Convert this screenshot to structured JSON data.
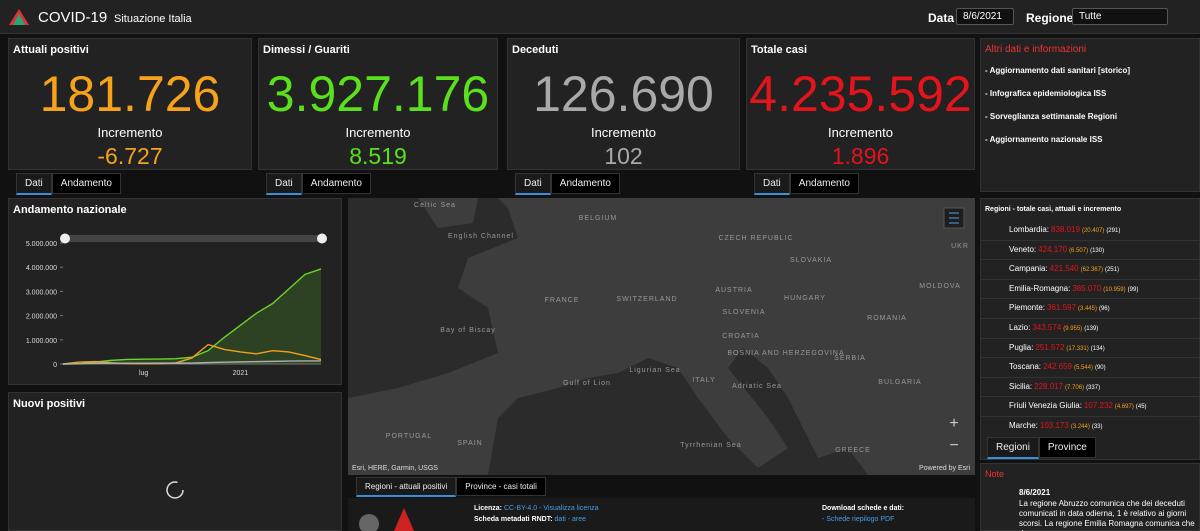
{
  "header": {
    "title": "COVID-19",
    "subtitle": "Situazione Italia",
    "date_label": "Data",
    "date_value": "8/6/2021",
    "region_label": "Regione",
    "region_value": "Tutte"
  },
  "cards": [
    {
      "title": "Attuali positivi",
      "value": "181.726",
      "increment_label": "Incremento",
      "increment": "-6.727",
      "color": "#f7a21b",
      "tabs": [
        "Dati",
        "Andamento"
      ]
    },
    {
      "title": "Dimessi / Guariti",
      "value": "3.927.176",
      "increment_label": "Incremento",
      "increment": "8.519",
      "color": "#5be01d",
      "tabs": [
        "Dati",
        "Andamento"
      ]
    },
    {
      "title": "Deceduti",
      "value": "126.690",
      "increment_label": "Incremento",
      "increment": "102",
      "color": "#a9a9a9",
      "tabs": [
        "Dati",
        "Andamento"
      ]
    },
    {
      "title": "Totale casi",
      "value": "4.235.592",
      "increment_label": "Incremento",
      "increment": "1.896",
      "color": "#e3141b",
      "tabs": [
        "Dati",
        "Andamento"
      ]
    }
  ],
  "links": {
    "title": "Altri dati e informazioni",
    "items": [
      "- Aggiornamento dati sanitari [storico]",
      "- Infografica epidemiologica ISS",
      "- Sorveglianza settimanale Regioni",
      "- Aggiornamento nazionale ISS"
    ]
  },
  "chart_data": {
    "type": "line",
    "title": "Andamento nazionale",
    "categories": [
      null,
      null,
      null,
      null,
      null,
      "lug",
      null,
      null,
      null,
      null,
      null,
      "2021",
      null,
      null,
      null,
      null,
      null
    ],
    "series": [
      {
        "color": "#6ad42b",
        "values": [
          0,
          10000,
          80000,
          150000,
          190000,
          200000,
          205000,
          220000,
          280000,
          550000,
          1100000,
          1600000,
          2100000,
          2500000,
          3100000,
          3700000,
          3927176
        ]
      },
      {
        "color": "#f0a21e",
        "values": [
          0,
          80000,
          100000,
          50000,
          20000,
          12000,
          15000,
          45000,
          250000,
          800000,
          600000,
          500000,
          420000,
          550000,
          500000,
          350000,
          181726
        ]
      },
      {
        "color": "#b0b0b0",
        "values": [
          0,
          12000,
          28000,
          33000,
          35000,
          35000,
          36000,
          36000,
          39000,
          60000,
          74000,
          88000,
          98000,
          108000,
          121000,
          125000,
          126690
        ]
      }
    ],
    "ylim": [
      0,
      5000000
    ],
    "yticks": [
      0,
      {
        "value": 1000000,
        "label": "1.000.000"
      },
      {
        "value": 2000000,
        "label": "2.000.000"
      },
      {
        "value": 3000000,
        "label": "3.000.000"
      },
      {
        "value": 4000000,
        "label": "4.000.000"
      },
      {
        "value": 5000000,
        "label": "5.000.000"
      }
    ],
    "grid": false
  },
  "new_positives": {
    "title": "Nuovi positivi"
  },
  "map": {
    "labels": [
      "Celtic Sea",
      "BELGIUM",
      "English Channel",
      "CZECH REPUBLIC",
      "UKR",
      "SLOVAKIA",
      "FRANCE",
      "SWITZERLAND",
      "AUSTRIA",
      "HUNGARY",
      "MOLDOVA",
      "SLOVENIA",
      "ROMANIA",
      "Bay of Biscay",
      "CROATIA",
      "BOSNIA AND HERZEGOVINA",
      "SERBIA",
      "Ligurian Sea",
      "ITALY",
      "Adriatic Sea",
      "BULGARIA",
      "Gulf of Lion",
      "PORTUGAL",
      "SPAIN",
      "Tyrrhenian Sea",
      "GREECE"
    ],
    "attribution": "Esri, HERE, Garmin, USGS",
    "powered": "Powered by Esri",
    "tabs": [
      "Regioni - attuali positivi",
      "Province - casi totali"
    ]
  },
  "footer": {
    "license_label": "Licenza:",
    "license": "CC-BY-4.0",
    "license_link": "- Visualizza licenza",
    "rndt_label": "Scheda metadati RNDT:",
    "rndt": "dati - aree",
    "download_label": "Download schede e dati:",
    "download_item": "- Schede riepilogo PDF"
  },
  "regions": {
    "title": "Regioni - totale casi, attuali e incremento",
    "rows": [
      [
        "Lombardia:",
        "838.019",
        "(20.407)",
        "(291)"
      ],
      [
        "Veneto:",
        "424.170",
        "(6.507)",
        "(130)"
      ],
      [
        "Campania:",
        "421.540",
        "(62.367)",
        "(251)"
      ],
      [
        "Emilia-Romagna:",
        "385.070",
        "(10.959)",
        "(99)"
      ],
      [
        "Piemonte:",
        "361.597",
        "(3.445)",
        "(96)"
      ],
      [
        "Lazio:",
        "343.574",
        "(9.955)",
        "(139)"
      ],
      [
        "Puglia:",
        "251.572",
        "(17.331)",
        "(134)"
      ],
      [
        "Toscana:",
        "242.659",
        "(5.544)",
        "(90)"
      ],
      [
        "Sicilia:",
        "228.017",
        "(7.706)",
        "(337)"
      ],
      [
        "Friuli Venezia Giulia:",
        "107.232",
        "(4.697)",
        "(45)"
      ],
      [
        "Marche:",
        "103.173",
        "(3.244)",
        "(33)"
      ]
    ],
    "tabs": [
      "Regioni",
      "Province"
    ]
  },
  "note": {
    "title": "Note",
    "date": "8/6/2021",
    "text": "La regione Abruzzo comunica che dei deceduti comunicati in data odierna, 1 è relativo ai giorni scorsi. La regione Emilia Romagna comunica che d"
  }
}
